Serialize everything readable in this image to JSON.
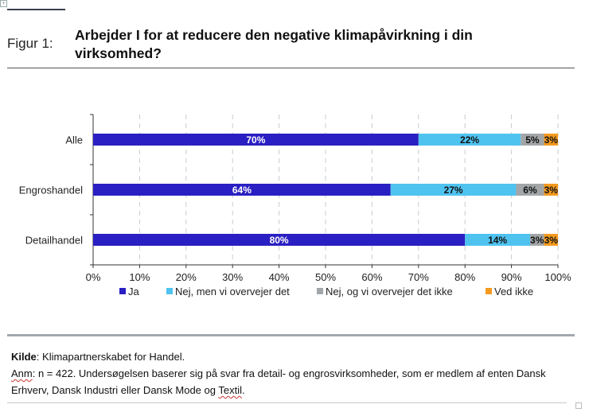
{
  "figure": {
    "label": "Figur 1:",
    "title": "Arbejder I for at reducere den negative klimapåvirkning i din virksomhed?"
  },
  "chart_data": {
    "type": "bar",
    "orientation": "horizontal",
    "stacked": true,
    "title": "Arbejder I for at reducere den negative klimapåvirkning i din virksomhed?",
    "categories": [
      "Alle",
      "Engroshandel",
      "Detailhandel"
    ],
    "series": [
      {
        "name": "Ja",
        "color": "#2a1fc2",
        "values": [
          70,
          64,
          80
        ],
        "labels": [
          "70%",
          "64%",
          "80%"
        ],
        "label_color": "#ffffff"
      },
      {
        "name": "Nej, men vi overvejer det",
        "color": "#4fc3f0",
        "values": [
          22,
          27,
          14
        ],
        "labels": [
          "22%",
          "27%",
          "14%"
        ],
        "label_color": "#111111"
      },
      {
        "name": "Nej, og vi overvejer det ikke",
        "color": "#a3a6a8",
        "values": [
          5,
          6,
          3
        ],
        "labels": [
          "5%",
          "6%",
          "3%"
        ],
        "label_color": "#111111"
      },
      {
        "name": "Ved ikke",
        "color": "#f39a1f",
        "values": [
          3,
          3,
          3
        ],
        "labels": [
          "3%",
          "3%",
          "3%"
        ],
        "label_color": "#111111"
      }
    ],
    "xlim": [
      0,
      100
    ],
    "xticks": [
      0,
      10,
      20,
      30,
      40,
      50,
      60,
      70,
      80,
      90,
      100
    ],
    "xtick_labels": [
      "0%",
      "10%",
      "20%",
      "30%",
      "40%",
      "50%",
      "60%",
      "70%",
      "80%",
      "90%",
      "100%"
    ],
    "xlabel": "",
    "ylabel": "",
    "grid": "vertical dashed",
    "legend_position": "bottom"
  },
  "footer": {
    "source_label": "Kilde",
    "source_text": ": Klimapartnerskabet for Handel.",
    "note_label": "Anm",
    "note_text_1": ": n = 422. Undersøgelsen baserer sig på svar fra detail- og engrosvirksomheder, som er medlem af enten Dansk Erhverv, Dansk Industri eller Dansk Mode og ",
    "note_word_flagged": "Textil",
    "note_text_end": "."
  }
}
